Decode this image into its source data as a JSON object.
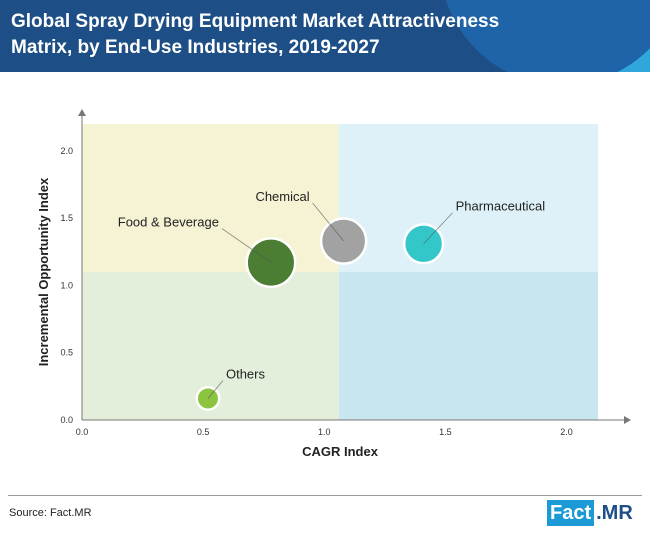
{
  "header": {
    "title": "Global Spray Drying Equipment Market Attractiveness Matrix, by End-Use Industries, 2019-2027"
  },
  "colors": {
    "header_bg": "#1d4f86",
    "quad_top_left": "#f5f3d3",
    "quad_top_right": "#def1f8",
    "quad_bottom_left": "#e3eedb",
    "quad_bottom_right": "#c7e6f0"
  },
  "chart_data": {
    "type": "scatter",
    "title": "Global Spray Drying Equipment Market Attractiveness Matrix, by End-Use Industries, 2019-2027",
    "xlabel": "CAGR Index",
    "ylabel": "Incremental Opportunity Index",
    "xlim": [
      0.0,
      2.13
    ],
    "ylim": [
      0.0,
      2.2
    ],
    "x_ticks": [
      "0.0",
      "0.5",
      "1.0",
      "1.5",
      "2.0"
    ],
    "y_ticks": [
      "0.0",
      "0.5",
      "1.0",
      "1.5",
      "2.0"
    ],
    "quadrant_split": {
      "x": 1.06,
      "y": 1.1
    },
    "grid": false,
    "points": [
      {
        "name": "Food & Beverage",
        "x": 0.78,
        "y": 1.17,
        "size": 2.2,
        "color": "#4b7d32"
      },
      {
        "name": "Chemical",
        "x": 1.08,
        "y": 1.33,
        "size": 1.9,
        "color": "#a2a2a2"
      },
      {
        "name": "Pharmaceutical",
        "x": 1.41,
        "y": 1.31,
        "size": 1.4,
        "color": "#33c7c9"
      },
      {
        "name": "Others",
        "x": 0.52,
        "y": 0.16,
        "size": 0.45,
        "color": "#8bc540"
      }
    ]
  },
  "footer": {
    "source": "Source: Fact.MR",
    "logo_part1": "Fact",
    "logo_part2": ".MR"
  }
}
